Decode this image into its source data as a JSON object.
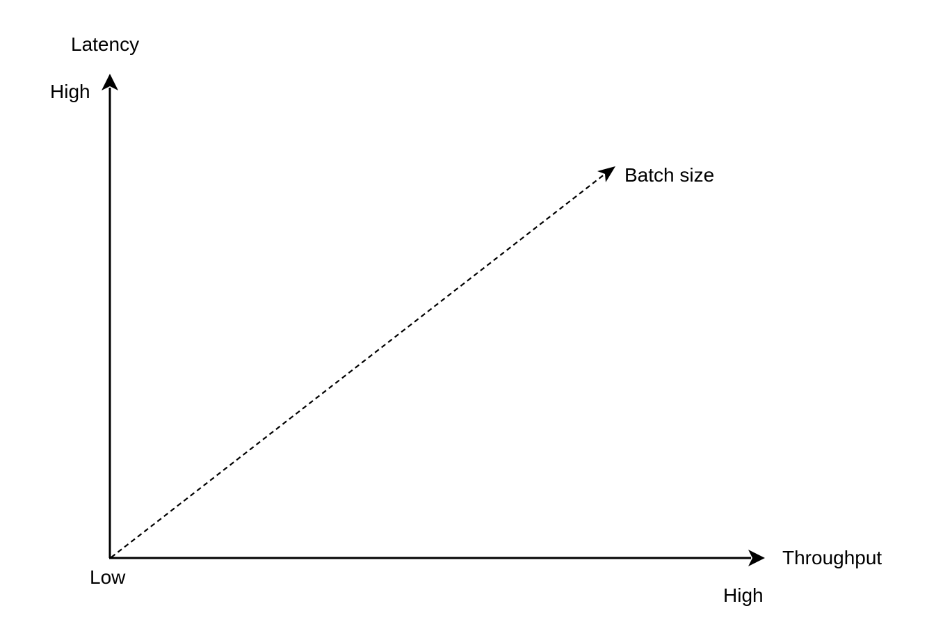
{
  "diagram": {
    "y_axis": {
      "label": "Latency",
      "high_label": "High"
    },
    "x_axis": {
      "label": "Throughput",
      "high_label": "High"
    },
    "origin_label": "Low",
    "trend": {
      "label": "Batch size",
      "line_style": "dashed"
    },
    "colors": {
      "stroke": "#000000",
      "background": "#ffffff"
    }
  }
}
